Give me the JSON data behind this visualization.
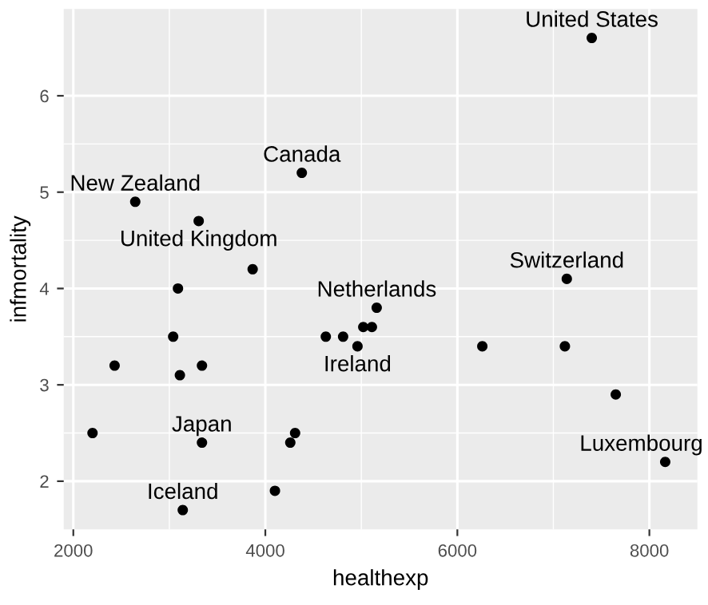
{
  "chart_data": {
    "type": "scatter",
    "xlabel": "healthexp",
    "ylabel": "infmortality",
    "x": [
      7400,
      4380,
      2645,
      3306,
      3868,
      3090,
      7140,
      3040,
      2430,
      3110,
      3340,
      2200,
      3340,
      4310,
      4260,
      3140,
      4100,
      5160,
      4630,
      4810,
      5020,
      5110,
      4960,
      6260,
      7120,
      7650,
      8165
    ],
    "values": [
      6.6,
      5.2,
      4.9,
      4.7,
      4.2,
      4.0,
      4.1,
      3.5,
      3.2,
      3.1,
      3.2,
      2.5,
      2.4,
      2.5,
      2.4,
      1.7,
      1.9,
      3.8,
      3.5,
      3.5,
      3.6,
      3.6,
      3.4,
      3.4,
      3.4,
      2.9,
      2.2
    ],
    "color": "#000000",
    "marker": "circle",
    "xlim": [
      1900,
      8500
    ],
    "ylim": [
      1.5,
      6.9
    ],
    "xticks": [
      2000,
      4000,
      6000,
      8000
    ],
    "yticks": [
      2,
      3,
      4,
      5,
      6
    ],
    "grid": true,
    "annotations": [
      {
        "text": "United States",
        "x": 7400,
        "y": 6.6
      },
      {
        "text": "Canada",
        "x": 4380,
        "y": 5.2
      },
      {
        "text": "New Zealand",
        "x": 2645,
        "y": 4.9
      },
      {
        "text": "United Kingdom",
        "x": 3306,
        "y": 4.7
      },
      {
        "text": "Switzerland",
        "x": 7140,
        "y": 4.1
      },
      {
        "text": "Netherlands",
        "x": 5160,
        "y": 3.8
      },
      {
        "text": "Ireland",
        "x": 4960,
        "y": 3.4
      },
      {
        "text": "Japan",
        "x": 3340,
        "y": 2.4
      },
      {
        "text": "Iceland",
        "x": 3140,
        "y": 1.7
      },
      {
        "text": "Luxembourg",
        "x": 8165,
        "y": 2.2
      }
    ]
  }
}
